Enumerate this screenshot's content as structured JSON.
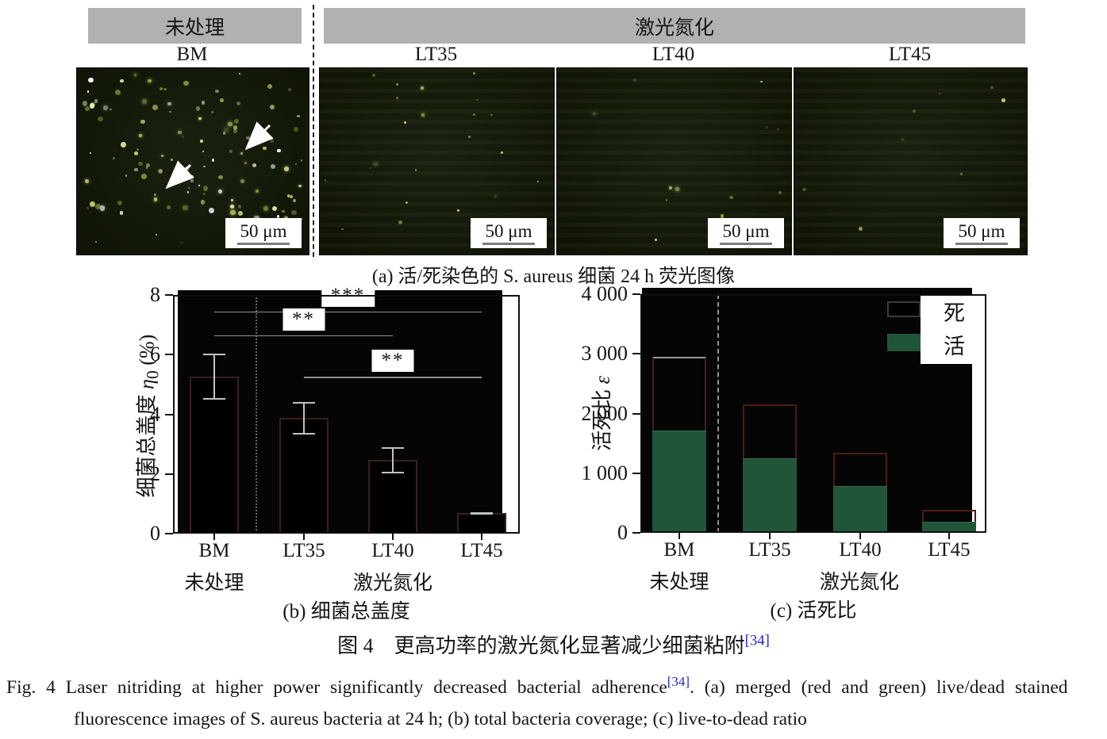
{
  "colors": {
    "header_gray": "#b1b1b1",
    "live_green": "#215539",
    "dead_bar_outline": "#4d1c11",
    "coverage_bar_outline": "#39201b",
    "reference_link_blue": "#2626cc",
    "plot_background": "#050505"
  },
  "figure": {
    "panel_a": {
      "group_untreated_label": "未处理",
      "group_nitrided_label": "激光氮化",
      "panels": [
        {
          "id": "bm",
          "label": "BM",
          "scale_bar": "50 μm",
          "speck_count": 135,
          "has_arrows": true,
          "banded": false
        },
        {
          "id": "lt35",
          "label": "LT35",
          "scale_bar": "50 μm",
          "speck_count": 24,
          "has_arrows": false,
          "banded": true
        },
        {
          "id": "lt40",
          "label": "LT40",
          "scale_bar": "50 μm",
          "speck_count": 16,
          "has_arrows": false,
          "banded": true
        },
        {
          "id": "lt45",
          "label": "LT45",
          "scale_bar": "50 μm",
          "speck_count": 9,
          "has_arrows": false,
          "banded": true
        }
      ],
      "caption": "(a) 活/死染色的 S. aureus 细菌 24 h 荧光图像"
    }
  },
  "chart_data": [
    {
      "type": "bar",
      "panel": "b",
      "title": "(b) 细菌总盖度",
      "ylabel": {
        "main": "细菌总盖度 ",
        "sym": "η",
        "sub": "0",
        "suf": " (%)"
      },
      "ylim": [
        0,
        8
      ],
      "yticks": [
        0,
        2,
        4,
        6,
        8
      ],
      "ytick_labels": [
        "0",
        "2",
        "4",
        "6",
        "8"
      ],
      "categories": [
        "BM",
        "LT35",
        "LT40",
        "LT45"
      ],
      "values": [
        5.25,
        3.87,
        2.46,
        0.68
      ],
      "errors": [
        0.77,
        0.55,
        0.43,
        0.05
      ],
      "group_labels": [
        "未处理",
        "激光氮化"
      ],
      "significance": [
        {
          "label": "***",
          "from": "BM",
          "to": "LT45",
          "y": 7.45
        },
        {
          "label": "**",
          "from": "BM",
          "to": "LT40",
          "y": 6.65
        },
        {
          "label": "**",
          "from": "LT35",
          "to": "LT45",
          "y": 5.25
        }
      ],
      "grid": false,
      "legend_position": "none"
    },
    {
      "type": "stacked-bar",
      "panel": "c",
      "title": "(c) 活死比",
      "ylabel": {
        "main": "活死比 ",
        "sym": "ε",
        "sub": "",
        "suf": ""
      },
      "ylim": [
        0,
        4000
      ],
      "yticks": [
        0,
        1000,
        2000,
        3000,
        4000
      ],
      "ytick_labels": [
        "0",
        "1 000",
        "2 000",
        "3 000",
        "4 000"
      ],
      "categories": [
        "BM",
        "LT35",
        "LT40",
        "LT45"
      ],
      "series": [
        {
          "name": "死",
          "color": "#000000",
          "totals": [
            2950,
            2150,
            1340,
            380
          ]
        },
        {
          "name": "活",
          "color": "#215539",
          "values": [
            1720,
            1250,
            790,
            180
          ]
        }
      ],
      "legend": [
        "死",
        "活"
      ],
      "group_labels": [
        "未处理",
        "激光氮化"
      ],
      "grid": false,
      "legend_position": "top-right"
    }
  ],
  "captions": {
    "chinese": {
      "text": "图 4　更高功率的激光氮化显著减少细菌粘附",
      "ref": "[34]"
    },
    "english": {
      "line1_pre": "Fig. 4   Laser nitriding at higher power significantly decreased bacterial adherence",
      "ref": "[34]",
      "line1_post": ". (a) merged (red and green) live/dead stained",
      "line2": "fluorescence images of S. aureus bacteria at 24 h; (b) total bacteria coverage; (c) live-to-dead ratio"
    }
  }
}
